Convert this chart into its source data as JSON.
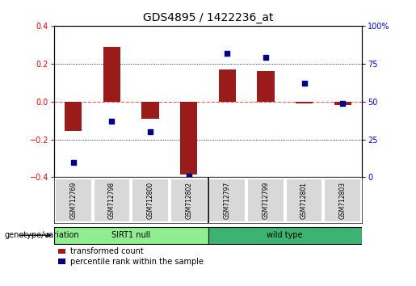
{
  "title": "GDS4895 / 1422236_at",
  "samples": [
    "GSM712769",
    "GSM712798",
    "GSM712800",
    "GSM712802",
    "GSM712797",
    "GSM712799",
    "GSM712801",
    "GSM712803"
  ],
  "red_bars": [
    -0.155,
    0.29,
    -0.09,
    -0.385,
    0.17,
    0.16,
    -0.01,
    -0.02
  ],
  "blue_dot_percentile": [
    10,
    37,
    30,
    1,
    82,
    79,
    62,
    49
  ],
  "group_labels": [
    "SIRT1 null",
    "wild type"
  ],
  "group_colors": [
    "#90ee90",
    "#3cb371"
  ],
  "group_splits": [
    4
  ],
  "ylim_left": [
    -0.4,
    0.4
  ],
  "ylim_right": [
    0,
    100
  ],
  "yticks_left": [
    -0.4,
    -0.2,
    0.0,
    0.2,
    0.4
  ],
  "yticks_right": [
    0,
    25,
    50,
    75,
    100
  ],
  "bar_color": "#9b1a1a",
  "dot_color": "#00008b",
  "dot_size": 18,
  "bar_width": 0.45,
  "background_color": "#ffffff",
  "plot_bg_color": "#ffffff",
  "zero_line_color": "#ff5555",
  "legend_red_label": "transformed count",
  "legend_blue_label": "percentile rank within the sample",
  "genotype_label": "genotype/variation",
  "title_fontsize": 10,
  "tick_fontsize": 7,
  "sample_fontsize": 5.5,
  "geno_fontsize": 7,
  "legend_fontsize": 7
}
